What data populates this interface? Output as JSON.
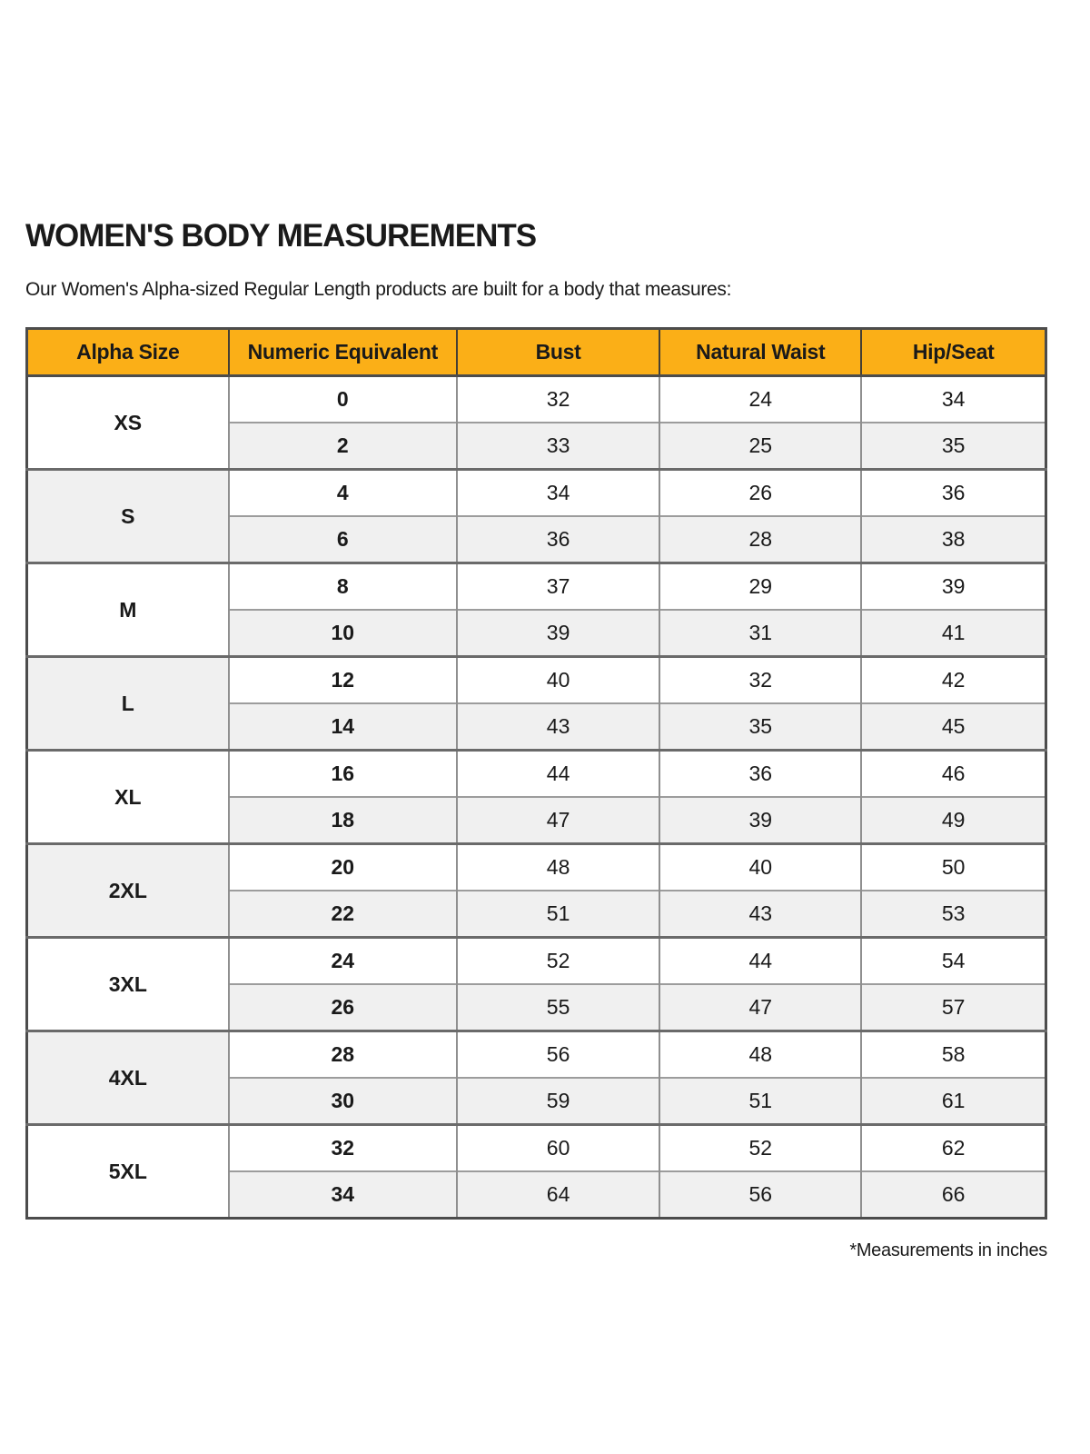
{
  "page": {
    "title": "WOMEN'S BODY MEASUREMENTS",
    "subtitle": "Our Women's Alpha-sized Regular Length products are built for a body that measures:",
    "footnote": "*Measurements in inches"
  },
  "colors": {
    "header_bg": "#FBAF17",
    "row_alt_bg": "#F0F0F0",
    "border_dark": "#4C4C4C",
    "border_group": "#6A6A6A",
    "border_sub": "#9C9C9C",
    "border_col": "#8F8F8F",
    "border_header": "#453F34",
    "text": "#1A1A1A"
  },
  "table": {
    "columns": [
      "Alpha Size",
      "Numeric Equivalent",
      "Bust",
      "Natural Waist",
      "Hip/Seat"
    ],
    "groups": [
      {
        "alpha": "XS",
        "rows": [
          {
            "numeric": "0",
            "bust": "32",
            "waist": "24",
            "hip": "34"
          },
          {
            "numeric": "2",
            "bust": "33",
            "waist": "25",
            "hip": "35"
          }
        ]
      },
      {
        "alpha": "S",
        "rows": [
          {
            "numeric": "4",
            "bust": "34",
            "waist": "26",
            "hip": "36"
          },
          {
            "numeric": "6",
            "bust": "36",
            "waist": "28",
            "hip": "38"
          }
        ]
      },
      {
        "alpha": "M",
        "rows": [
          {
            "numeric": "8",
            "bust": "37",
            "waist": "29",
            "hip": "39"
          },
          {
            "numeric": "10",
            "bust": "39",
            "waist": "31",
            "hip": "41"
          }
        ]
      },
      {
        "alpha": "L",
        "rows": [
          {
            "numeric": "12",
            "bust": "40",
            "waist": "32",
            "hip": "42"
          },
          {
            "numeric": "14",
            "bust": "43",
            "waist": "35",
            "hip": "45"
          }
        ]
      },
      {
        "alpha": "XL",
        "rows": [
          {
            "numeric": "16",
            "bust": "44",
            "waist": "36",
            "hip": "46"
          },
          {
            "numeric": "18",
            "bust": "47",
            "waist": "39",
            "hip": "49"
          }
        ]
      },
      {
        "alpha": "2XL",
        "rows": [
          {
            "numeric": "20",
            "bust": "48",
            "waist": "40",
            "hip": "50"
          },
          {
            "numeric": "22",
            "bust": "51",
            "waist": "43",
            "hip": "53"
          }
        ]
      },
      {
        "alpha": "3XL",
        "rows": [
          {
            "numeric": "24",
            "bust": "52",
            "waist": "44",
            "hip": "54"
          },
          {
            "numeric": "26",
            "bust": "55",
            "waist": "47",
            "hip": "57"
          }
        ]
      },
      {
        "alpha": "4XL",
        "rows": [
          {
            "numeric": "28",
            "bust": "56",
            "waist": "48",
            "hip": "58"
          },
          {
            "numeric": "30",
            "bust": "59",
            "waist": "51",
            "hip": "61"
          }
        ]
      },
      {
        "alpha": "5XL",
        "rows": [
          {
            "numeric": "32",
            "bust": "60",
            "waist": "52",
            "hip": "62"
          },
          {
            "numeric": "34",
            "bust": "64",
            "waist": "56",
            "hip": "66"
          }
        ]
      }
    ]
  }
}
